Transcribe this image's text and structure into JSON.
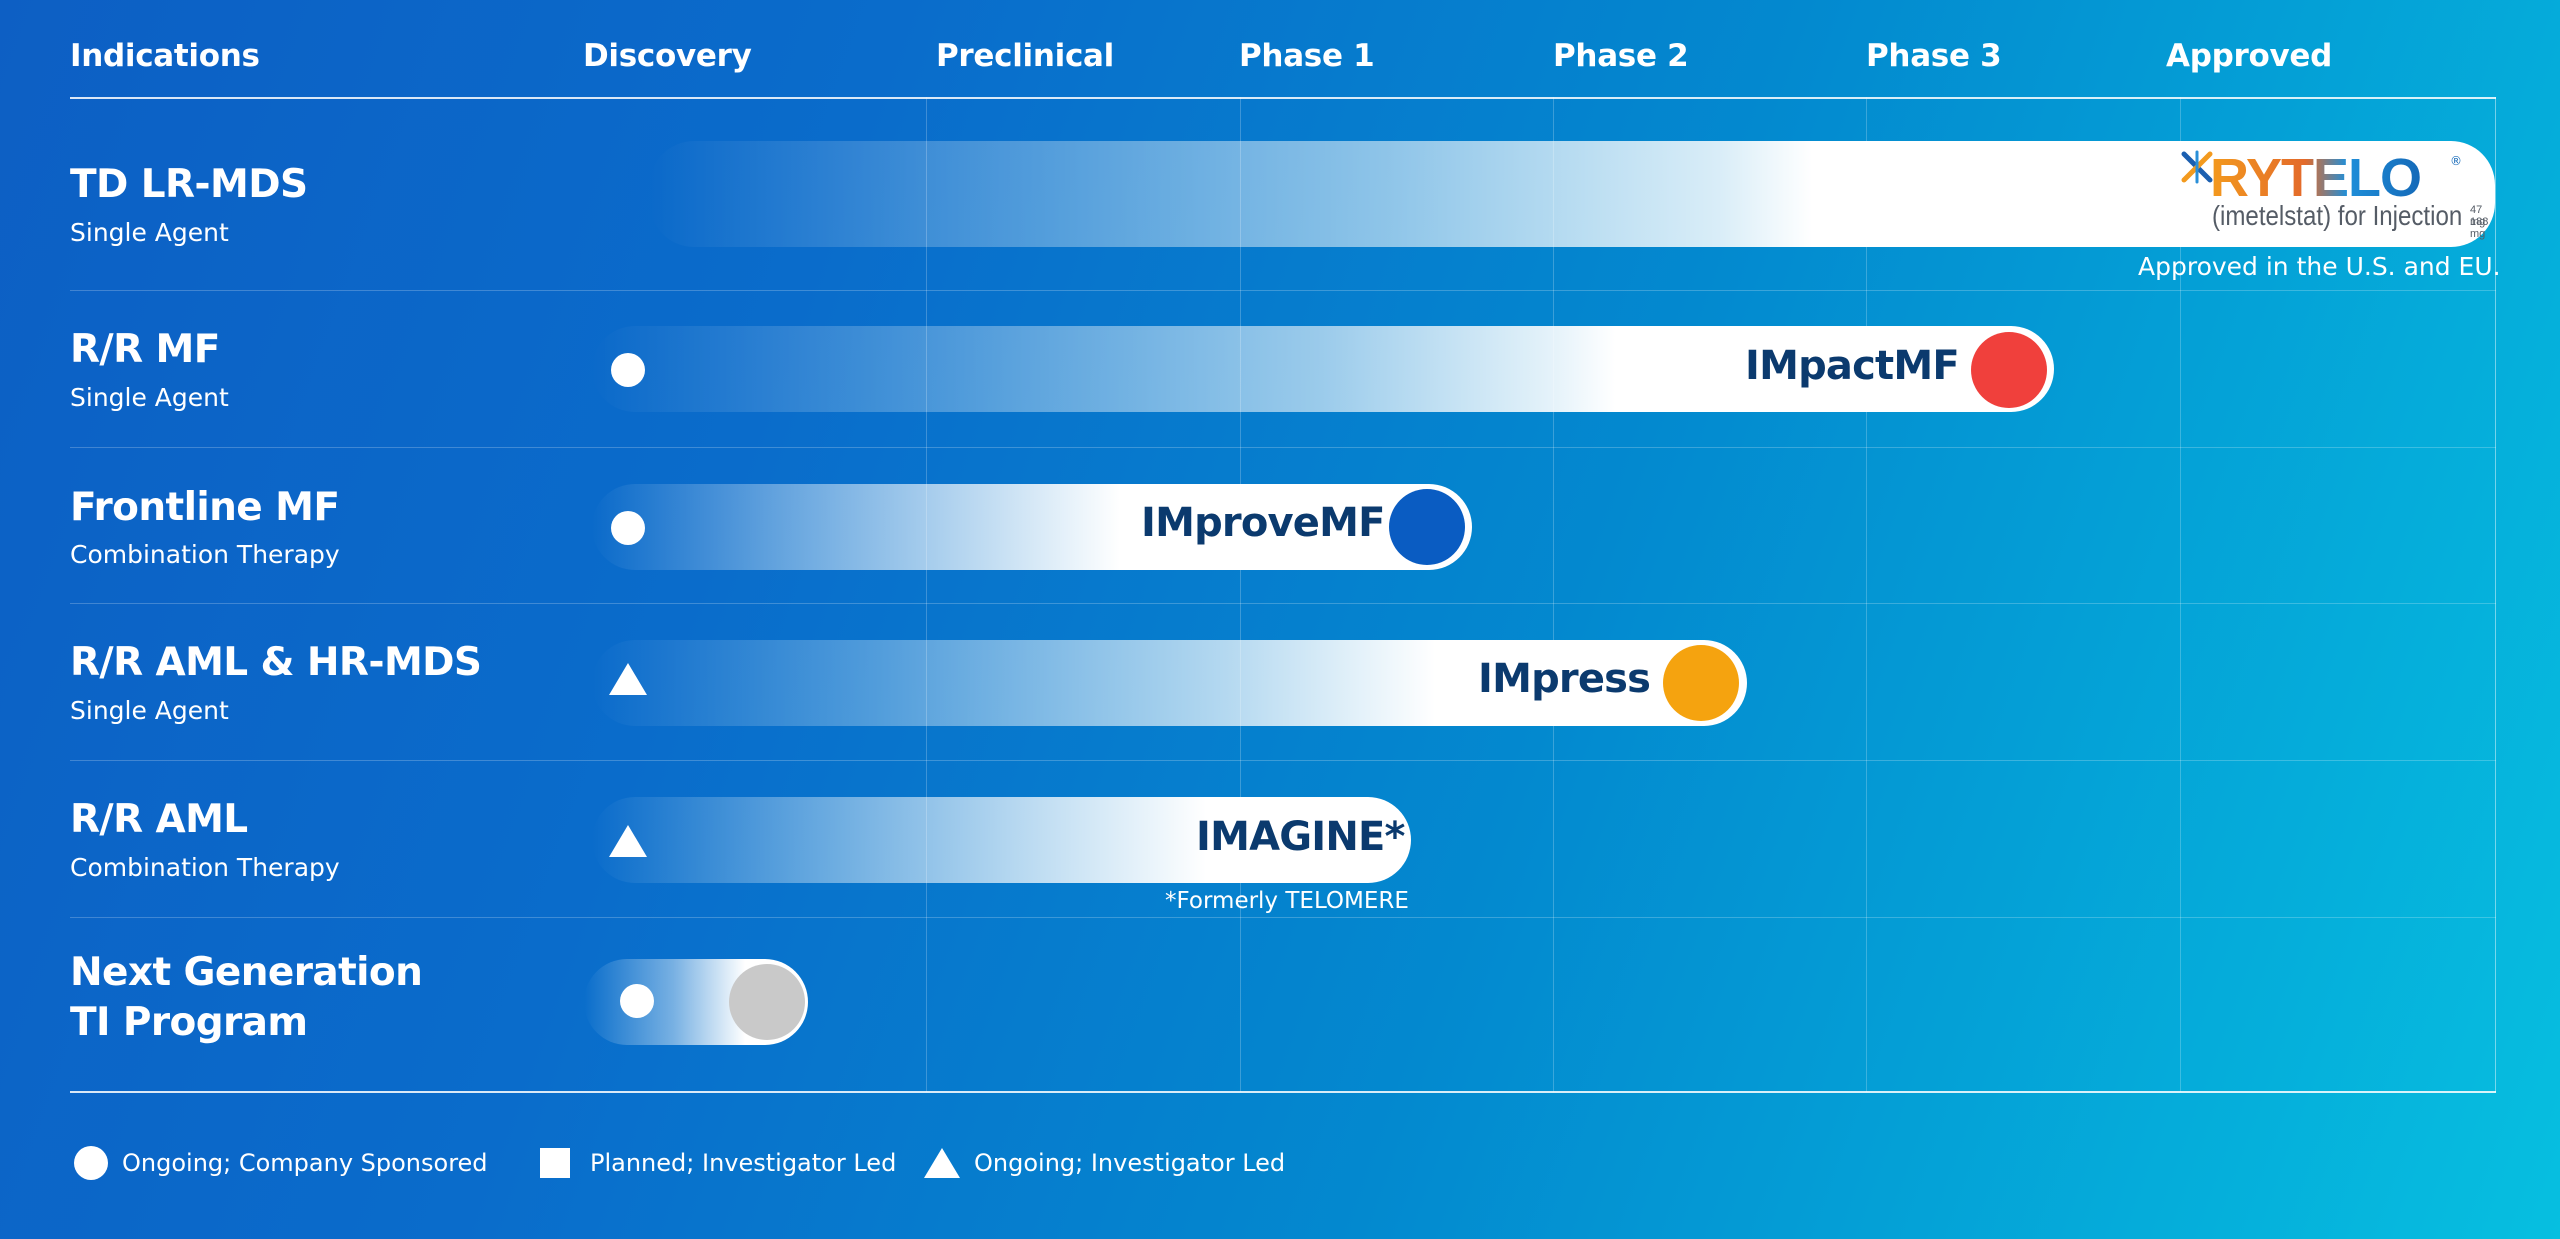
{
  "headers": {
    "indications": "Indications",
    "discovery": "Discovery",
    "preclinical": "Preclinical",
    "phase1": "Phase 1",
    "phase2": "Phase 2",
    "phase3": "Phase 3",
    "approved": "Approved"
  },
  "rows": [
    {
      "title": "TD LR-MDS",
      "subtitle": "Single Agent"
    },
    {
      "title": "R/R MF",
      "subtitle": "Single Agent",
      "program": "IMpactMF",
      "dot_color": "#f0403c"
    },
    {
      "title": "Frontline MF",
      "subtitle": "Combination Therapy",
      "program": "IMproveMF",
      "dot_color": "#0a5cc2"
    },
    {
      "title": "R/R AML & HR-MDS",
      "subtitle": "Single Agent",
      "program": "IMpress",
      "dot_color": "#f5a30f"
    },
    {
      "title": "R/R AML",
      "subtitle": "Combination Therapy",
      "program": "IMAGINE*"
    },
    {
      "title_line1": "Next Generation",
      "title_line2": "TI Program",
      "dot_color": "#c9c9c9"
    }
  ],
  "rytelo": {
    "brand": "RYTELO",
    "generic": "(imetelstat) for Injection",
    "dose1": "47 mg",
    "dose2": "188 mg",
    "reg": "®"
  },
  "notes": {
    "approved": "Approved in the U.S. and EU.",
    "formerly": "*Formerly TELOMERE"
  },
  "legend": {
    "circle": "Ongoing; Company Sponsored",
    "square": "Planned; Investigator Led",
    "triangle": "Ongoing; Investigator Led"
  },
  "colors": {
    "program_label": "#0b3a6e",
    "impactmf_dot": "#f0403c",
    "improvemf_dot": "#0a5cc2",
    "impress_dot": "#f5a30f",
    "next_gen_dot": "#c9c9c9"
  }
}
